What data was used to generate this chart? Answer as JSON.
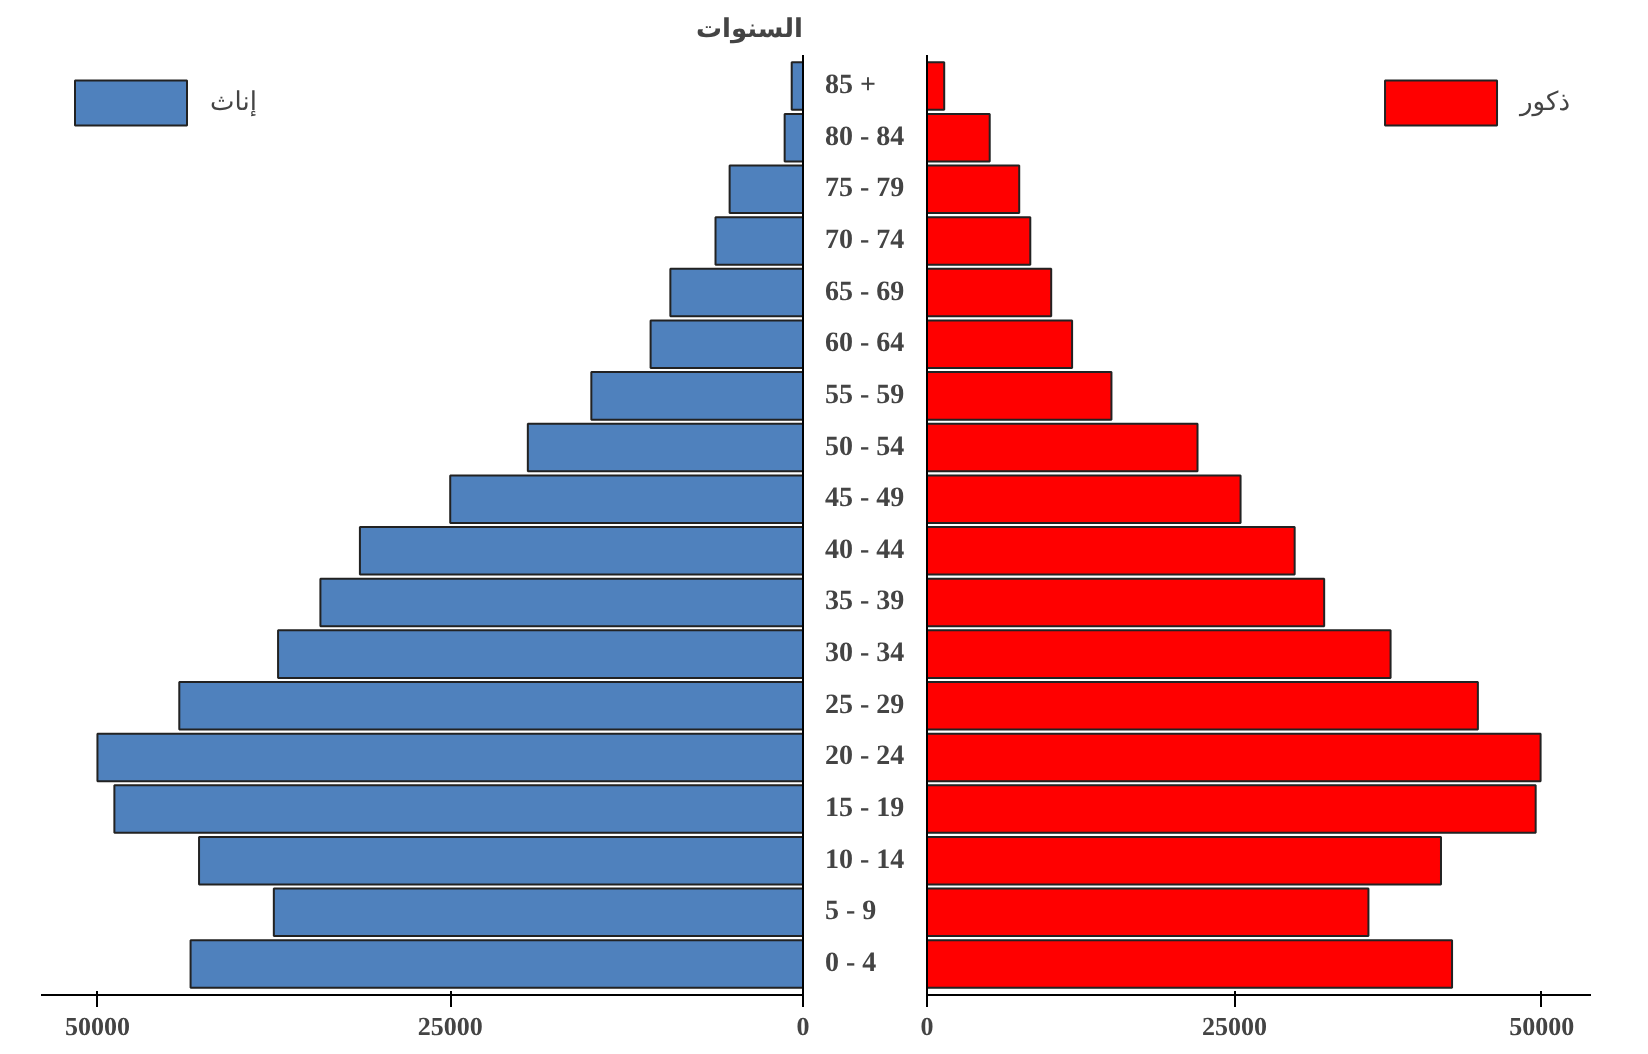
{
  "chart_data": [
    {
      "type": "bar",
      "orientation": "horizontal",
      "ylabel": "السنوات",
      "categories": [
        "85 +",
        "80 - 84",
        "75 - 79",
        "70 - 74",
        "65 - 69",
        "60 - 64",
        "55 - 59",
        "50 - 54",
        "45 - 49",
        "40 - 44",
        "35 - 39",
        "30 - 34",
        "25 - 29",
        "20 - 24",
        "15 - 19",
        "10 - 14",
        "5 - 9",
        "0 - 4"
      ],
      "series": [
        {
          "name": "إناث",
          "color": "#4f81bd",
          "values": [
            800,
            1300,
            5200,
            6200,
            9400,
            10800,
            15000,
            19500,
            25000,
            31400,
            34200,
            37200,
            44200,
            50000,
            48800,
            42800,
            37500,
            43400
          ]
        }
      ],
      "xlim": [
        54000,
        0
      ],
      "xticks": [
        0,
        25000,
        50000
      ],
      "legend": "top left"
    },
    {
      "type": "bar",
      "orientation": "horizontal",
      "categories": [
        null,
        null,
        null,
        null,
        null,
        null,
        null,
        null,
        null,
        null,
        null,
        null,
        null,
        null,
        null,
        null,
        null,
        null
      ],
      "series": [
        {
          "name": "ذكور",
          "color": "#ff0000",
          "values": [
            1400,
            5100,
            7500,
            8400,
            10100,
            11800,
            15000,
            22000,
            25500,
            29900,
            32300,
            37700,
            44800,
            49900,
            49500,
            41800,
            35900,
            42700
          ]
        }
      ],
      "xlim": [
        0,
        54000
      ],
      "xticks": [
        0,
        25000,
        50000
      ],
      "legend": "top right",
      "tick_labels": "x"
    }
  ]
}
